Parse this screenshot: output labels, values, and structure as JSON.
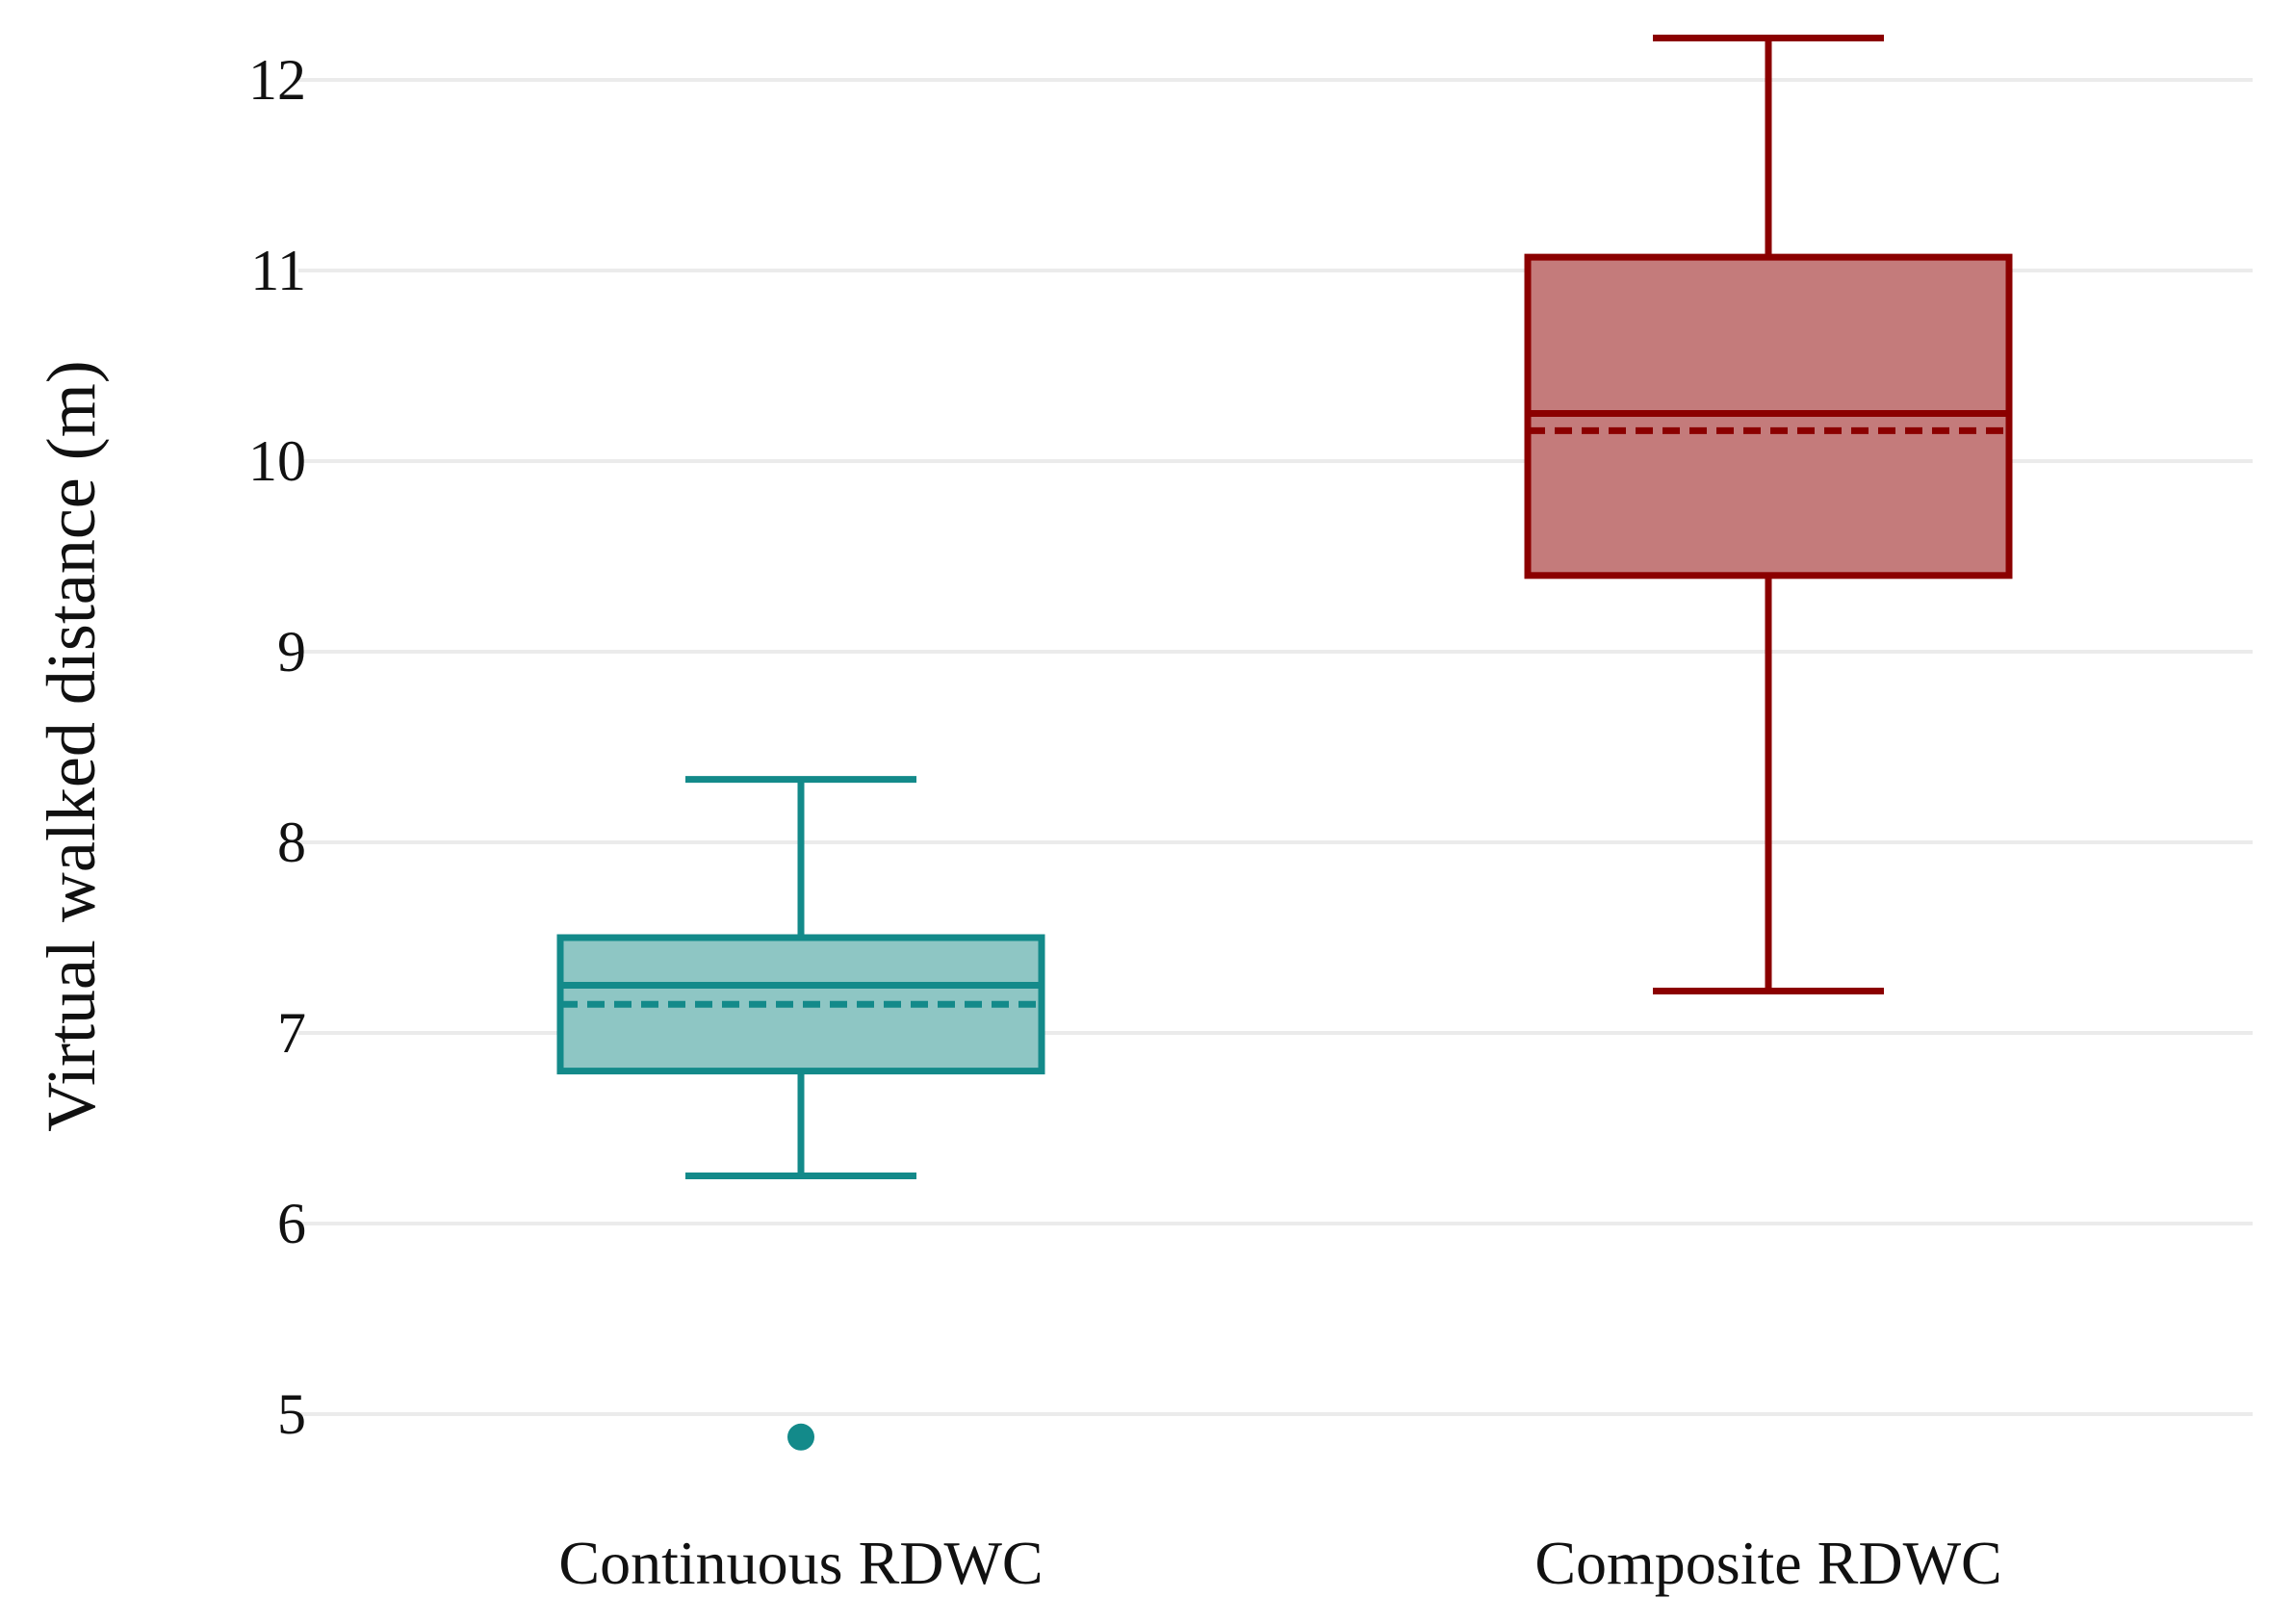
{
  "chart_data": {
    "type": "box",
    "title": "",
    "xlabel": "",
    "ylabel": "Virtual walked distance (m)",
    "ylim": [
      4.5,
      12.3
    ],
    "yticks": [
      5,
      6,
      7,
      8,
      9,
      10,
      11,
      12
    ],
    "grid": true,
    "legend": "none",
    "categories": [
      "Continuous RDWC",
      "Composite RDWC"
    ],
    "series": [
      {
        "category": "Continuous RDWC",
        "whisker_low": 6.25,
        "q1": 6.8,
        "median": 7.25,
        "mean": 7.15,
        "q3": 7.5,
        "whisker_high": 8.33,
        "outliers": [
          4.88
        ],
        "color": "#138a8a",
        "fill": "#8ec6c4"
      },
      {
        "category": "Composite RDWC",
        "whisker_low": 7.22,
        "q1": 9.4,
        "median": 10.25,
        "mean": 10.16,
        "q3": 11.07,
        "whisker_high": 12.22,
        "outliers": [],
        "color": "#8b0000",
        "fill": "#c47b7b"
      }
    ]
  },
  "colors": {
    "grid": "#ebebeb",
    "text": "#111111"
  }
}
